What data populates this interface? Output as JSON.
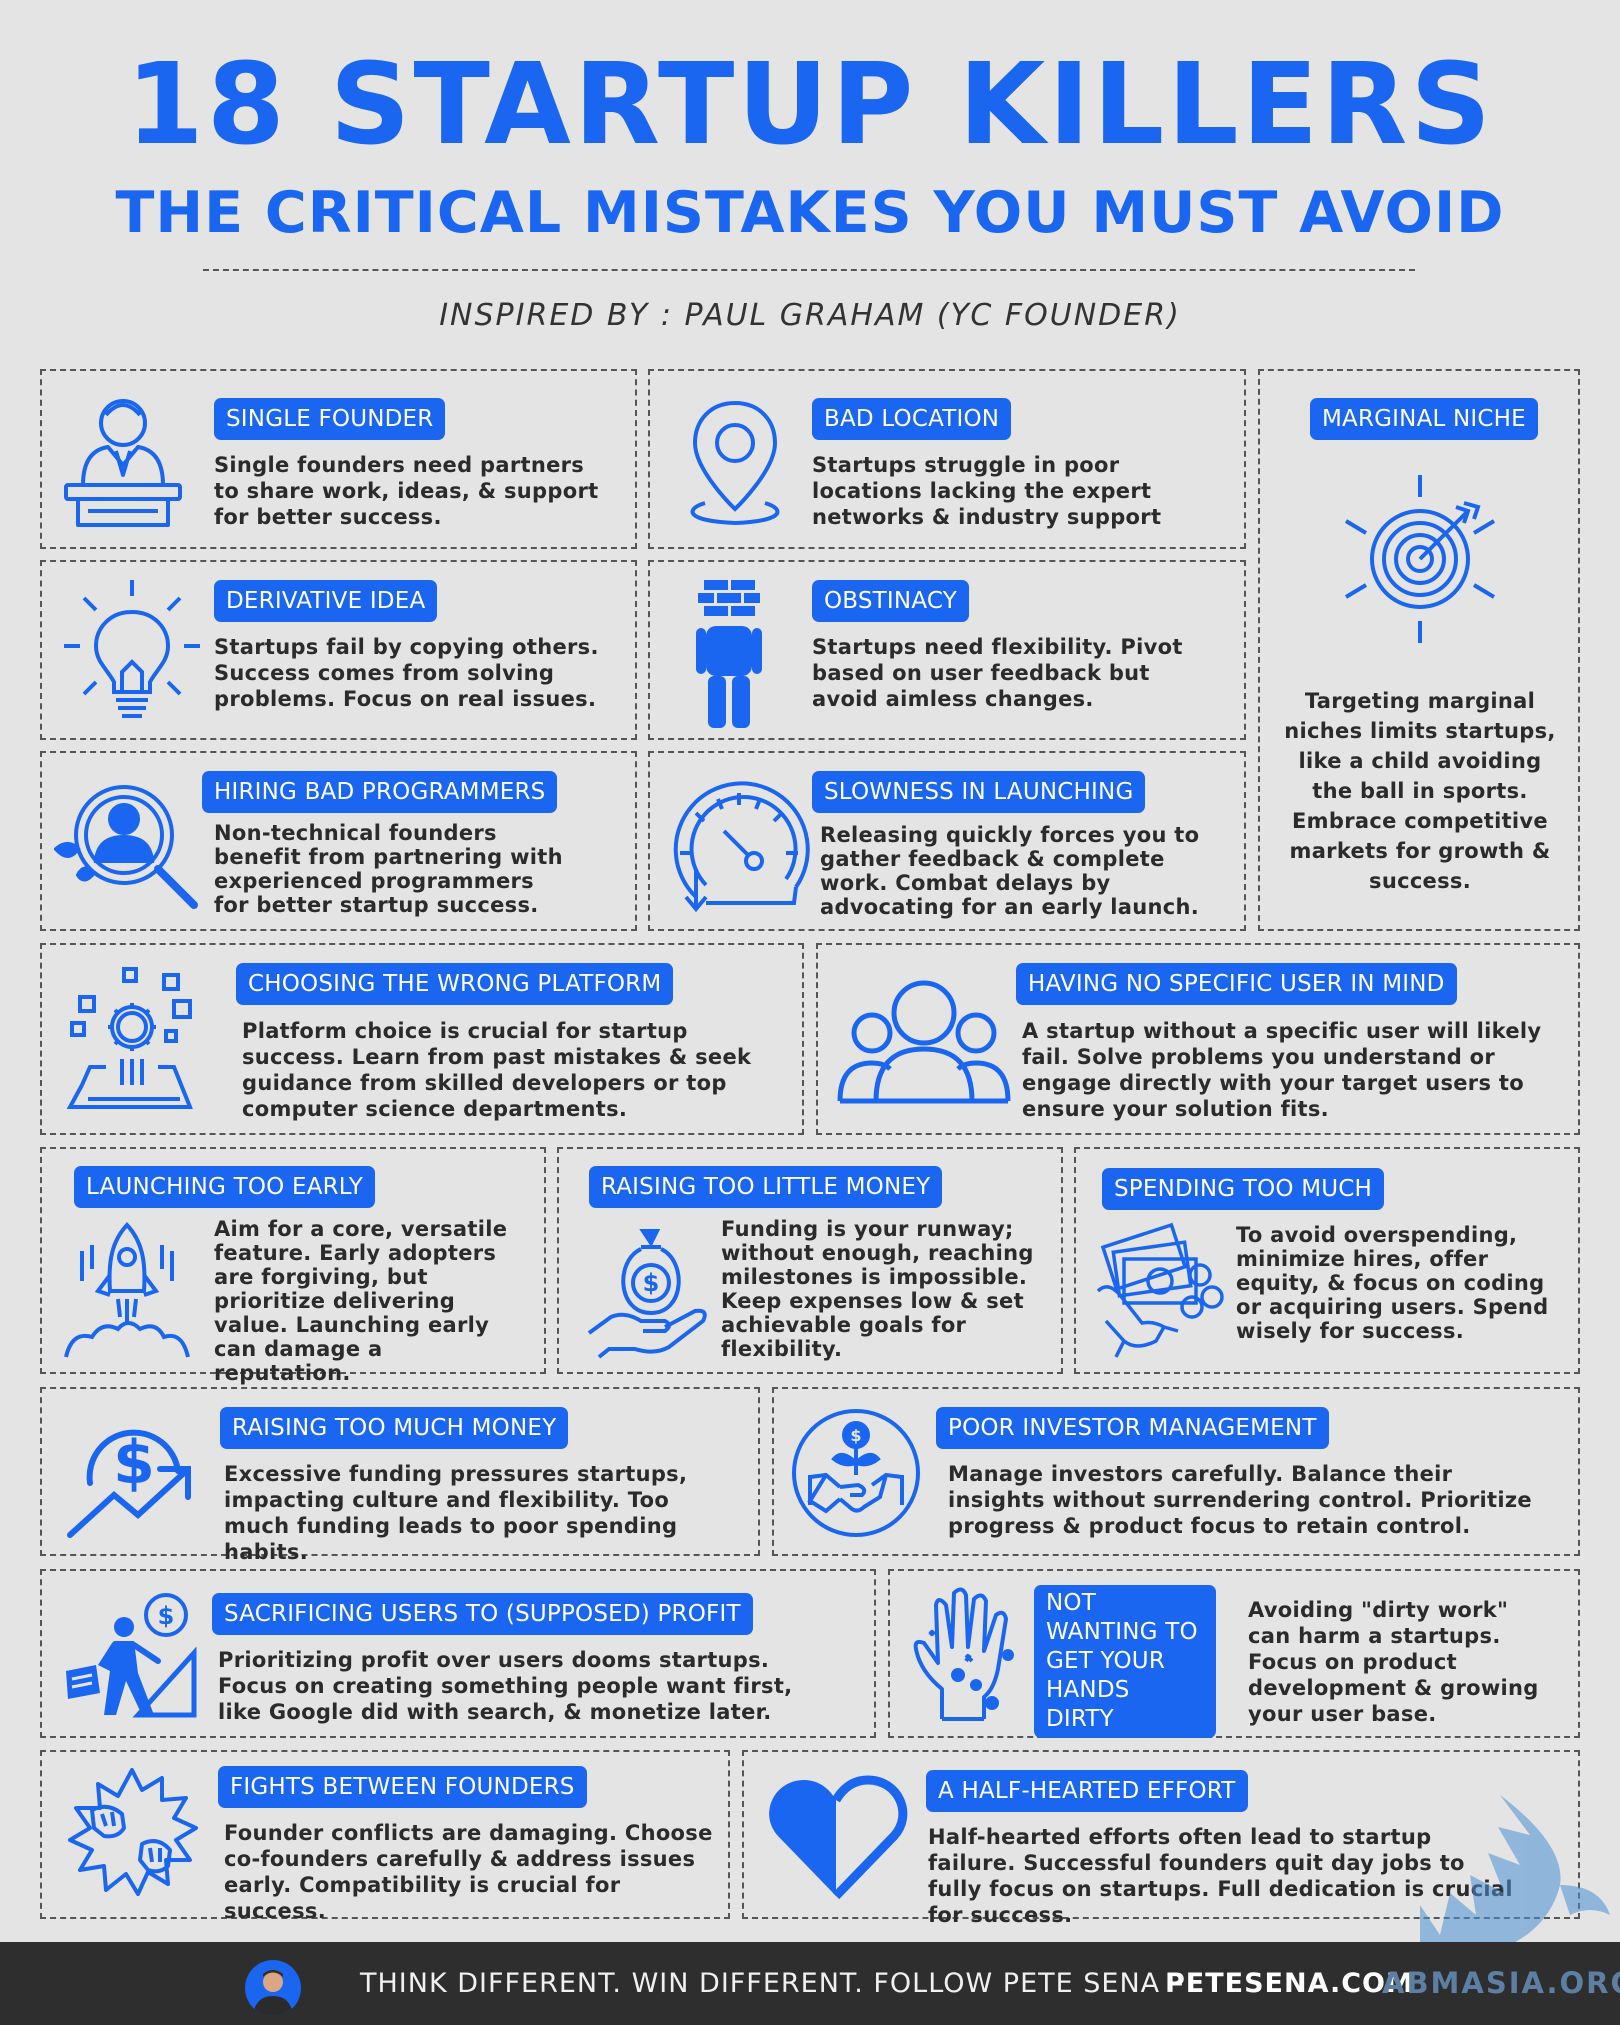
{
  "header": {
    "title": "18 STARTUP KILLERS",
    "subtitle": "THE CRITICAL MISTAKES YOU MUST AVOID",
    "inspired_by": "INSPIRED BY : PAUL GRAHAM (YC FOUNDER)"
  },
  "colors": {
    "accent": "#1a66f0",
    "background": "#e4e4e4",
    "footer": "#2e2e2e"
  },
  "killers": [
    {
      "title": "SINGLE FOUNDER",
      "icon": "founder-at-desk-icon",
      "text": "Single founders need partners to share work, ideas, & support for better success."
    },
    {
      "title": "BAD LOCATION",
      "icon": "location-pin-icon",
      "text": "Startups struggle in poor locations lacking the expert networks & industry support"
    },
    {
      "title": "MARGINAL NICHE",
      "icon": "target-icon",
      "text": "Targeting marginal niches limits startups, like a child avoiding the ball in sports. Embrace competitive markets for growth & success."
    },
    {
      "title": "DERIVATIVE IDEA",
      "icon": "lightbulb-icon",
      "text": "Startups fail by copying others. Success comes from solving problems. Focus on real issues."
    },
    {
      "title": "OBSTINACY",
      "icon": "brick-head-person-icon",
      "text": "Startups need flexibility. Pivot based on user feedback but avoid aimless changes."
    },
    {
      "title": "HIRING BAD PROGRAMMERS",
      "icon": "magnifier-person-icon",
      "text": "Non-technical founders benefit from partnering with experienced programmers for better startup success."
    },
    {
      "title": "SLOWNESS IN LAUNCHING",
      "icon": "speedometer-icon",
      "text": "Releasing quickly forces you to gather feedback & complete work. Combat delays by advocating for an early launch."
    },
    {
      "title": "CHOOSING THE WRONG PLATFORM",
      "icon": "platform-gear-icon",
      "text": "Platform choice is crucial for startup success. Learn from past mistakes & seek guidance from skilled developers or top computer science departments."
    },
    {
      "title": "HAVING NO SPECIFIC USER IN MIND",
      "icon": "user-group-icon",
      "text": "A startup without a specific user will likely fail. Solve problems you understand or engage directly with your target users to ensure your solution fits."
    },
    {
      "title": "LAUNCHING TOO EARLY",
      "icon": "rocket-icon",
      "text": "Aim for a core, versatile feature. Early adopters are forgiving, but prioritize delivering value. Launching early can damage a reputation."
    },
    {
      "title": "RAISING TOO LITTLE MONEY",
      "icon": "money-bag-hand-icon",
      "text": "Funding is your runway; without enough, reaching milestones is impossible. Keep expenses low & set achievable goals for flexibility."
    },
    {
      "title": "SPENDING TOO MUCH",
      "icon": "cash-hand-icon",
      "text": "To avoid overspending, minimize hires, offer equity, & focus on coding or acquiring users. Spend wisely for success."
    },
    {
      "title": "RAISING TOO MUCH MONEY",
      "icon": "dollar-growth-icon",
      "text": "Excessive funding pressures startups, impacting culture and flexibility. Too much funding leads to poor spending habits."
    },
    {
      "title": "POOR INVESTOR MANAGEMENT",
      "icon": "handshake-investment-icon",
      "text": "Manage investors carefully. Balance their insights without surrendering control. Prioritize progress & product focus to retain control."
    },
    {
      "title": "SACRIFICING USERS TO (SUPPOSED) PROFIT",
      "icon": "climbing-person-icon",
      "text": "Prioritizing profit over users dooms startups. Focus on creating something people want first, like Google did with search, & monetize later."
    },
    {
      "title": "NOT WANTING TO GET YOUR HANDS DIRTY",
      "icon": "dirty-hand-icon",
      "text": "Avoiding \"dirty work\" can harm a startups. Focus on product development & growing your user base."
    },
    {
      "title": "FIGHTS BETWEEN FOUNDERS",
      "icon": "fist-fight-icon",
      "text": "Founder conflicts are damaging. Choose co-founders carefully & address issues early. Compatibility is crucial for success."
    },
    {
      "title": "A HALF-HEARTED EFFORT",
      "icon": "half-heart-icon",
      "text": "Half-hearted efforts often lead to startup failure. Successful founders quit day jobs to fully focus on startups. Full dedication is crucial for success."
    }
  ],
  "footer": {
    "slogan": "THINK DIFFERENT. WIN DIFFERENT. FOLLOW PETE SENA –",
    "site": "PETESENA.COM",
    "watermark": "ABMASIA.ORG"
  }
}
